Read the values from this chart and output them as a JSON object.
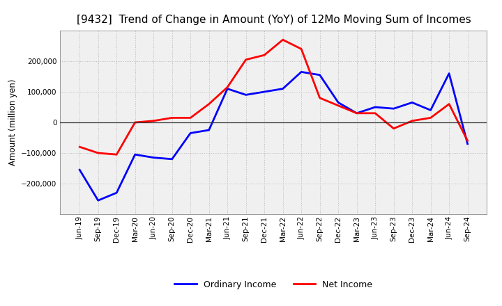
{
  "title": "[9432]  Trend of Change in Amount (YoY) of 12Mo Moving Sum of Incomes",
  "ylabel": "Amount (million yen)",
  "background_color": "#ffffff",
  "plot_bg_color": "#f0f0f0",
  "grid_color": "#bbbbbb",
  "x_labels": [
    "Jun-19",
    "Sep-19",
    "Dec-19",
    "Mar-20",
    "Jun-20",
    "Sep-20",
    "Dec-20",
    "Mar-21",
    "Jun-21",
    "Sep-21",
    "Dec-21",
    "Mar-22",
    "Jun-22",
    "Sep-22",
    "Dec-22",
    "Mar-23",
    "Jun-23",
    "Sep-23",
    "Dec-23",
    "Mar-24",
    "Jun-24",
    "Sep-24"
  ],
  "ordinary_income": [
    -155000,
    -255000,
    -230000,
    -105000,
    -115000,
    -120000,
    -35000,
    -25000,
    110000,
    90000,
    100000,
    110000,
    165000,
    155000,
    65000,
    30000,
    50000,
    45000,
    65000,
    40000,
    160000,
    -70000
  ],
  "net_income": [
    -80000,
    -100000,
    -105000,
    0,
    5000,
    15000,
    15000,
    60000,
    115000,
    205000,
    220000,
    270000,
    240000,
    80000,
    55000,
    30000,
    30000,
    -20000,
    5000,
    15000,
    60000,
    -60000
  ],
  "ordinary_color": "#0000ff",
  "net_color": "#ff0000",
  "ylim": [
    -300000,
    300000
  ],
  "yticks": [
    -200000,
    -100000,
    0,
    100000,
    200000
  ],
  "line_width": 2.0,
  "title_fontsize": 11,
  "legend_fontsize": 9,
  "tick_fontsize": 7.5
}
